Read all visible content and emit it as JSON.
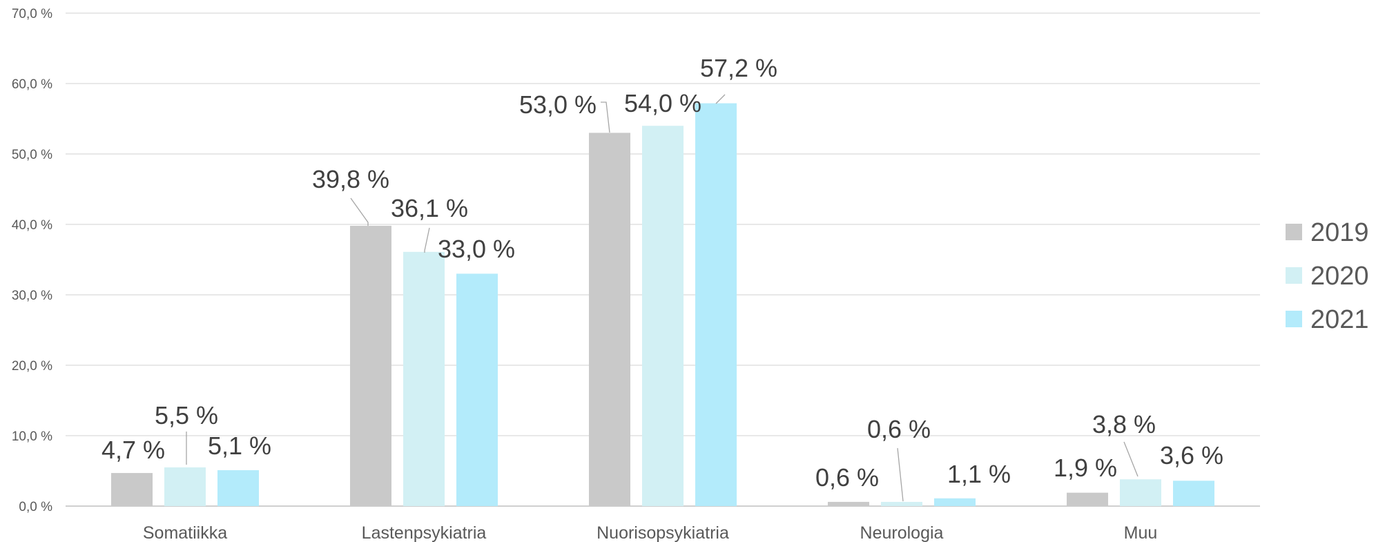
{
  "chart_data": {
    "type": "bar",
    "categories": [
      "Somatiikka",
      "Lastenpsykiatria",
      "Nuorisopsykiatria",
      "Neurologia",
      "Muu"
    ],
    "series": [
      {
        "name": "2019",
        "color": "#c9c9c9",
        "values": [
          4.7,
          39.8,
          53.0,
          0.6,
          1.9
        ],
        "labels": [
          "4,7 %",
          "39,8 %",
          "53,0 %",
          "0,6 %",
          "1,9 %"
        ]
      },
      {
        "name": "2020",
        "color": "#d2f0f4",
        "values": [
          5.5,
          36.1,
          54.0,
          0.6,
          3.8
        ],
        "labels": [
          "5,5 %",
          "36,1 %",
          "54,0 %",
          "0,6 %",
          "3,8 %"
        ]
      },
      {
        "name": "2021",
        "color": "#b3ebfb",
        "values": [
          5.1,
          33.0,
          57.2,
          1.1,
          3.6
        ],
        "labels": [
          "5,1 %",
          "33,0 %",
          "57,2 %",
          "1,1 %",
          "3,6 %"
        ]
      }
    ],
    "y_ticks": [
      "0,0 %",
      "10,0 %",
      "20,0 %",
      "30,0 %",
      "40,0 %",
      "50,0 %",
      "60,0 %",
      "70,0 %"
    ],
    "ylim": [
      0,
      70
    ],
    "grid": true,
    "legend_position": "right",
    "title": "",
    "xlabel": "",
    "ylabel": ""
  }
}
